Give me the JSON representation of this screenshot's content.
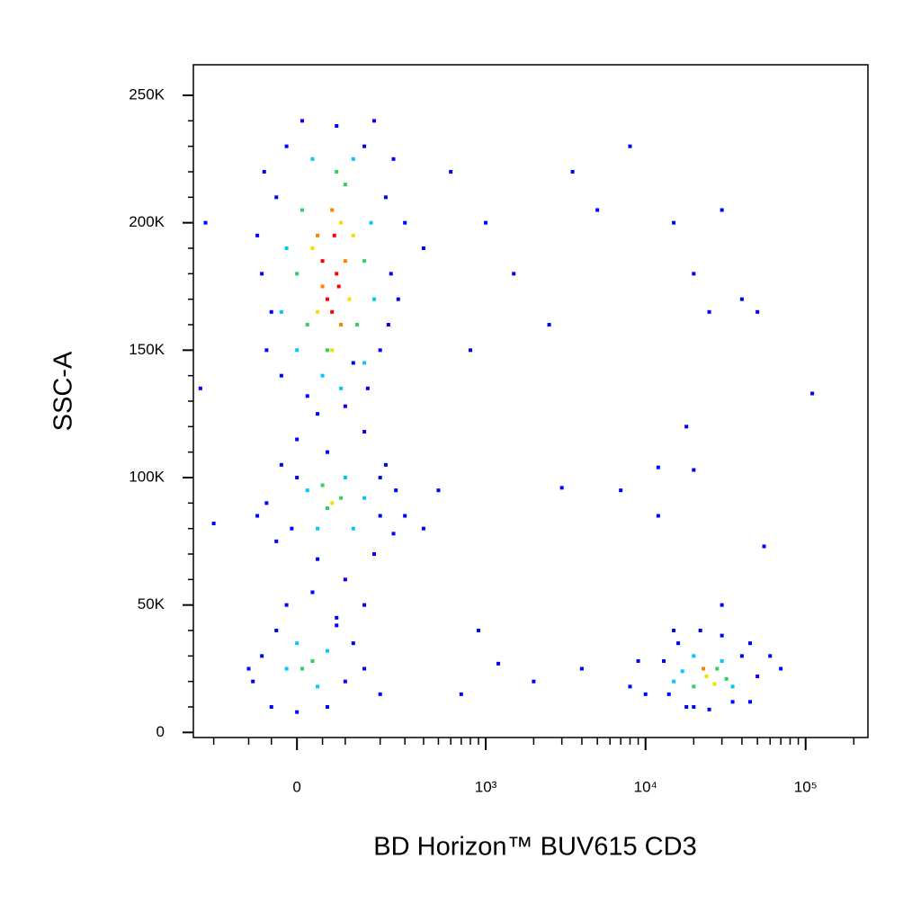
{
  "chart_data": {
    "type": "scatter",
    "xlabel": "BD Horizon™ BUV615 CD3",
    "ylabel": "SSC-A",
    "xscale": "asinh",
    "xlim": [
      -280,
      245000
    ],
    "ylim": [
      -2000,
      262000
    ],
    "xticks": [
      0,
      {
        "value": 1000,
        "label": "10³"
      },
      {
        "value": 10000,
        "label": "10⁴"
      },
      {
        "value": 100000,
        "label": "10⁵"
      }
    ],
    "xminorticks": [
      -200,
      -100,
      -50,
      50,
      100,
      200,
      300,
      400,
      500,
      600,
      700,
      800,
      900,
      2000,
      3000,
      4000,
      5000,
      6000,
      7000,
      8000,
      9000,
      20000,
      30000,
      40000,
      50000,
      60000,
      70000,
      80000,
      90000,
      200000
    ],
    "yticks": [
      0,
      {
        "value": 50000,
        "label": "50K"
      },
      {
        "value": 100000,
        "label": "100K"
      },
      {
        "value": 150000,
        "label": "150K"
      },
      {
        "value": 200000,
        "label": "200K"
      },
      {
        "value": 250000,
        "label": "250K"
      }
    ],
    "yminorticks": [
      10000,
      20000,
      30000,
      40000,
      60000,
      70000,
      80000,
      90000,
      110000,
      120000,
      130000,
      140000,
      160000,
      170000,
      180000,
      190000,
      210000,
      220000,
      230000,
      240000
    ],
    "series": [
      {
        "color": "#0000ff",
        "x": [
          -60,
          -40,
          -70,
          -20,
          10,
          80,
          150,
          220,
          240,
          200,
          160,
          100,
          20,
          -50,
          -80,
          250,
          300,
          400,
          180,
          -30,
          120,
          230,
          -65,
          270,
          40,
          0,
          60,
          -30,
          150,
          200,
          260,
          -60,
          -40,
          100,
          30,
          -20,
          180,
          250,
          80,
          150,
          300,
          -80,
          400,
          500,
          0,
          40,
          200,
          220,
          -10,
          -70,
          -90,
          -50,
          0,
          60,
          100,
          120,
          80,
          -40,
          150,
          -100,
          200,
          600,
          800,
          1000,
          1500,
          2500,
          3500,
          5000,
          8000,
          15000,
          20000,
          30000,
          25000,
          40000,
          50000,
          110000,
          18000,
          12000,
          20000,
          3000,
          7000,
          12000,
          55000,
          900,
          1200,
          2000,
          700,
          4000,
          9000,
          10000,
          60000,
          70000,
          45000,
          30000,
          15000,
          20000,
          35000,
          8000,
          -250,
          -230,
          -200,
          13000,
          14000,
          16000,
          22000,
          30000,
          40000,
          50000,
          45000,
          25000,
          18000
        ],
        "values": [
          150000,
          210000,
          180000,
          230000,
          240000,
          238000,
          230000,
          210000,
          180000,
          150000,
          135000,
          128000,
          132000,
          165000,
          195000,
          225000,
          200000,
          190000,
          240000,
          140000,
          145000,
          160000,
          220000,
          170000,
          125000,
          115000,
          110000,
          105000,
          118000,
          100000,
          95000,
          90000,
          75000,
          60000,
          55000,
          50000,
          70000,
          78000,
          45000,
          50000,
          85000,
          85000,
          80000,
          95000,
          100000,
          68000,
          85000,
          105000,
          80000,
          30000,
          20000,
          10000,
          8000,
          10000,
          20000,
          35000,
          42000,
          40000,
          25000,
          25000,
          15000,
          220000,
          150000,
          200000,
          180000,
          160000,
          220000,
          205000,
          230000,
          200000,
          180000,
          205000,
          165000,
          170000,
          165000,
          133000,
          120000,
          104000,
          103000,
          96000,
          95000,
          85000,
          73000,
          40000,
          27000,
          20000,
          15000,
          25000,
          28000,
          15000,
          30000,
          25000,
          35000,
          50000,
          40000,
          10000,
          12000,
          18000,
          135000,
          200000,
          82000,
          28000,
          15000,
          35000,
          40000,
          38000,
          30000,
          22000,
          12000,
          9000,
          10000
        ]
      },
      {
        "color": "#00c8ff",
        "x": [
          0,
          50,
          150,
          180,
          -20,
          30,
          120,
          170,
          -30,
          90,
          40,
          120,
          20,
          100,
          150,
          -20,
          40,
          60,
          0,
          15000,
          35000,
          20000,
          30000,
          17000
        ],
        "values": [
          150000,
          140000,
          145000,
          170000,
          190000,
          225000,
          225000,
          200000,
          165000,
          135000,
          80000,
          80000,
          95000,
          100000,
          92000,
          25000,
          18000,
          32000,
          35000,
          20000,
          18000,
          30000,
          28000,
          24000
        ]
      },
      {
        "color": "#30d060",
        "x": [
          20,
          60,
          130,
          150,
          10,
          100,
          0,
          80,
          60,
          90,
          50,
          10,
          30,
          20000,
          28000,
          32000
        ],
        "values": [
          160000,
          150000,
          160000,
          185000,
          205000,
          215000,
          180000,
          220000,
          88000,
          92000,
          97000,
          25000,
          28000,
          18000,
          25000,
          21000
        ]
      },
      {
        "color": "#f0e000",
        "x": [
          40,
          110,
          30,
          90,
          70,
          120,
          70,
          24000,
          27000
        ],
        "values": [
          165000,
          170000,
          190000,
          200000,
          150000,
          195000,
          90000,
          22000,
          19000
        ]
      },
      {
        "color": "#ff8000",
        "x": [
          50,
          100,
          70,
          90,
          40,
          23000
        ],
        "values": [
          175000,
          185000,
          205000,
          160000,
          195000,
          25000
        ]
      },
      {
        "color": "#ff0000",
        "x": [
          60,
          80,
          50,
          70,
          75,
          85
        ],
        "values": [
          170000,
          180000,
          185000,
          165000,
          195000,
          175000
        ]
      }
    ]
  }
}
